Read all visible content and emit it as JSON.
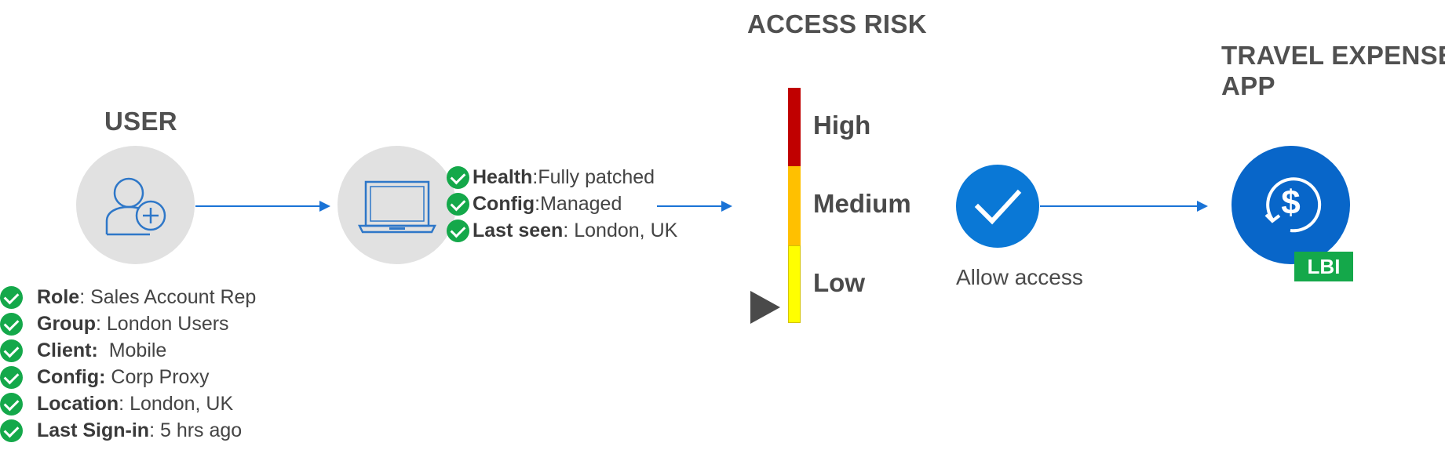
{
  "user": {
    "heading": "USER",
    "attributes": [
      {
        "label": "Role",
        "sep": ": ",
        "value": "Sales Account Rep"
      },
      {
        "label": "Group",
        "sep": ": ",
        "value": "London Users"
      },
      {
        "label": "Client:",
        "sep": "  ",
        "value": "Mobile"
      },
      {
        "label": "Config:",
        "sep": " ",
        "value": "Corp Proxy"
      },
      {
        "label": "Location",
        "sep": ": ",
        "value": "London, UK"
      },
      {
        "label": "Last Sign-in",
        "sep": ": ",
        "value": "5 hrs ago"
      }
    ]
  },
  "device": {
    "attributes": [
      {
        "label": "Health",
        "sep": ":",
        "value": "Fully patched"
      },
      {
        "label": "Config",
        "sep": ":",
        "value": "Managed"
      },
      {
        "label": "Last seen",
        "sep": ": ",
        "value": "London, UK"
      }
    ]
  },
  "risk": {
    "heading": "ACCESS RISK",
    "levels": [
      {
        "label": "High",
        "color": "#c00000"
      },
      {
        "label": "Medium",
        "color": "#ffc000"
      },
      {
        "label": "Low",
        "color": "#ffff00"
      }
    ],
    "current_level": "Low"
  },
  "decision": {
    "label": "Allow access",
    "color": "#0a78d6"
  },
  "app": {
    "heading_line1": "TRAVEL EXPENSE",
    "heading_line2": "APP",
    "badge": "LBI",
    "icon": "dollar-sync-icon",
    "color": "#0866c9"
  },
  "colors": {
    "arrow": "#1a73d6",
    "check": "#14a84a",
    "badge": "#14a84a"
  }
}
